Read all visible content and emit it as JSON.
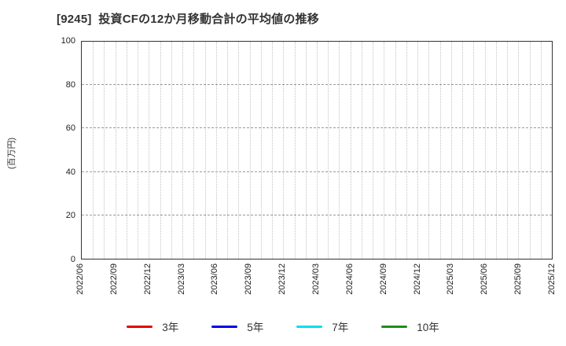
{
  "header": {
    "title": "[9245]  投資CFの12か月移動合計の平均値の推移"
  },
  "chart_data": {
    "type": "line",
    "title": "[9245] 投資CFの12か月移動合計の平均値の推移",
    "xlabel": "",
    "ylabel": "(百万円)",
    "ylim": [
      0,
      100
    ],
    "yticks": [
      0,
      20,
      40,
      60,
      80,
      100
    ],
    "x_tick_labels": [
      "2022/06",
      "2022/09",
      "2022/12",
      "2023/03",
      "2023/06",
      "2023/09",
      "2023/12",
      "2024/03",
      "2024/06",
      "2024/09",
      "2024/12",
      "2025/03",
      "2025/06",
      "2025/09",
      "2025/12"
    ],
    "minor_vertical_gridlines_per_interval": 3,
    "grid": true,
    "legend_position": "bottom-center",
    "series": [
      {
        "name": "3年",
        "color": "#e60000",
        "values": []
      },
      {
        "name": "5年",
        "color": "#0000ee",
        "values": []
      },
      {
        "name": "7年",
        "color": "#00e0ee",
        "values": []
      },
      {
        "name": "10年",
        "color": "#1e8c1e",
        "values": []
      }
    ],
    "note": "plot area is empty — no data lines are drawn for any series"
  }
}
